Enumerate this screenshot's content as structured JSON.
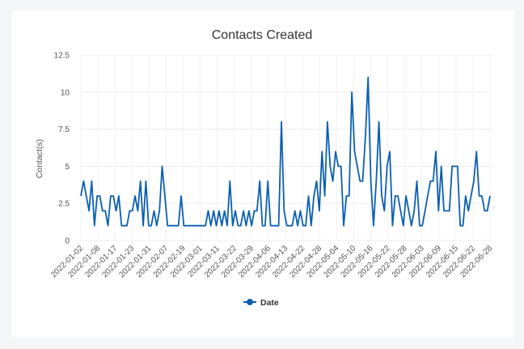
{
  "chart_data": {
    "type": "line",
    "title": "Contacts Created",
    "ylabel": "Contact(s)",
    "xlabel": "",
    "ylim": [
      0,
      12.5
    ],
    "yticks": [
      "0",
      "2.5",
      "5",
      "7.5",
      "10",
      "12.5"
    ],
    "x_tick_labels": [
      "2022-01-02",
      "2022-01-08",
      "2022-01-17",
      "2022-01-23",
      "2022-01-31",
      "2022-02-07",
      "2022-02-19",
      "2022-03-01",
      "2022-03-11",
      "2022-03-22",
      "2022-03-29",
      "2022-04-06",
      "2022-04-13",
      "2022-04-22",
      "2022-04-28",
      "2022-05-04",
      "2022-05-10",
      "2022-05-16",
      "2022-05-22",
      "2022-05-28",
      "2022-06-03",
      "2022-06-09",
      "2022-06-15",
      "2022-06-22",
      "2022-06-28"
    ],
    "grid": true,
    "legend": "bottom",
    "color": "#0a5fb4",
    "series": [
      {
        "name": "Date",
        "values": [
          3,
          4,
          3,
          2,
          4,
          1,
          3,
          3,
          2,
          2,
          1,
          3,
          3,
          2,
          3,
          1,
          1,
          1,
          2,
          2,
          3,
          2,
          4,
          1,
          4,
          1,
          1,
          2,
          1,
          2,
          5,
          3,
          1,
          1,
          1,
          1,
          1,
          3,
          1,
          1,
          1,
          1,
          1,
          1,
          1,
          1,
          1,
          2,
          1,
          2,
          1,
          2,
          1,
          2,
          1,
          4,
          1,
          2,
          1,
          1,
          2,
          1,
          2,
          1,
          2,
          2,
          4,
          1,
          1,
          4,
          1,
          1,
          1,
          1,
          8,
          2,
          1,
          1,
          1,
          2,
          1,
          2,
          1,
          1,
          3,
          1,
          3,
          4,
          2,
          6,
          3,
          8,
          5,
          4,
          6,
          5,
          5,
          1,
          3,
          3,
          10,
          6,
          5,
          4,
          4,
          7,
          11,
          4,
          1,
          4,
          8,
          3,
          2,
          5,
          6,
          1,
          3,
          3,
          2,
          1,
          3,
          2,
          1,
          2,
          4,
          1,
          1,
          2,
          3,
          4,
          4,
          6,
          2,
          5,
          2,
          2,
          2,
          5,
          5,
          5,
          1,
          1,
          3,
          2,
          3,
          4,
          6,
          3,
          3,
          2,
          2,
          3
        ]
      }
    ]
  }
}
